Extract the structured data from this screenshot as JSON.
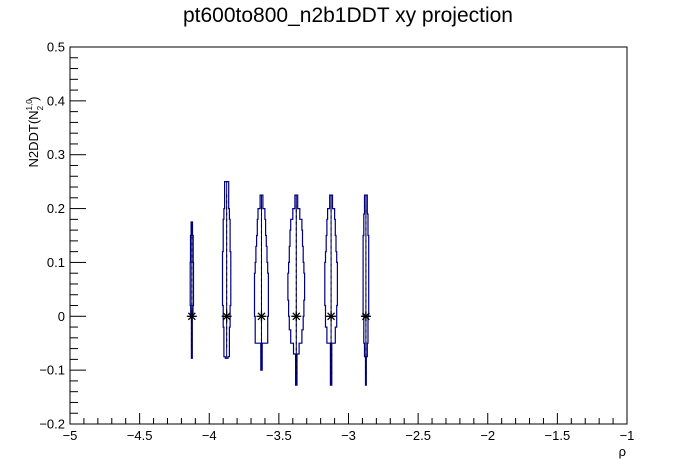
{
  "chart_data": {
    "type": "violin",
    "title": "pt600to800_n2b1DDT xy projection",
    "xlabel": "ρ",
    "ylabel": {
      "base": "N2DDT(N",
      "sup": "1,0",
      "sub": "2",
      "close": ")"
    },
    "xlim": [
      -5,
      -1
    ],
    "ylim": [
      -0.2,
      0.5
    ],
    "xticks": [
      -5,
      -4.5,
      -4,
      -3.5,
      -3,
      -2.5,
      -2,
      -1.5,
      -1
    ],
    "xtick_labels": [
      "−5",
      "−4.5",
      "−4",
      "−3.5",
      "−3",
      "−2.5",
      "−2",
      "−1.5",
      "−1"
    ],
    "yticks": [
      -0.2,
      -0.1,
      0,
      0.1,
      0.2,
      0.3,
      0.4,
      0.5
    ],
    "ytick_labels": [
      "−0.2",
      "−0.1",
      "0",
      "0.1",
      "0.2",
      "0.3",
      "0.4",
      "0.5"
    ],
    "line_color": "#000080",
    "marker_color": "#000000",
    "candles": [
      {
        "x": -4.125,
        "mean": 0.0,
        "whisker": [
          -0.078,
          0.175
        ],
        "median": 0.0,
        "profile": [
          [
            -0.078,
            0.003
          ],
          [
            0.0,
            0.008
          ],
          [
            0.02,
            0.012
          ],
          [
            0.06,
            0.012
          ],
          [
            0.1,
            0.01
          ],
          [
            0.13,
            0.01
          ],
          [
            0.15,
            0.005
          ],
          [
            0.175,
            0.002
          ]
        ]
      },
      {
        "x": -3.875,
        "mean": 0.0,
        "whisker": [
          -0.078,
          0.25
        ],
        "median": 0.0,
        "profile": [
          [
            -0.078,
            0.01
          ],
          [
            -0.075,
            0.02
          ],
          [
            -0.05,
            0.02
          ],
          [
            -0.02,
            0.025
          ],
          [
            0.02,
            0.03
          ],
          [
            0.05,
            0.03
          ],
          [
            0.09,
            0.03
          ],
          [
            0.12,
            0.025
          ],
          [
            0.15,
            0.025
          ],
          [
            0.18,
            0.02
          ],
          [
            0.2,
            0.015
          ],
          [
            0.25,
            0.003
          ]
        ]
      },
      {
        "x": -3.625,
        "mean": 0.0,
        "whisker": [
          -0.1,
          0.225
        ],
        "median": 0.0,
        "profile": [
          [
            -0.1,
            0.005
          ],
          [
            -0.05,
            0.045
          ],
          [
            -0.02,
            0.045
          ],
          [
            0.0,
            0.05
          ],
          [
            0.03,
            0.05
          ],
          [
            0.06,
            0.05
          ],
          [
            0.08,
            0.045
          ],
          [
            0.1,
            0.04
          ],
          [
            0.13,
            0.035
          ],
          [
            0.15,
            0.03
          ],
          [
            0.18,
            0.025
          ],
          [
            0.2,
            0.01
          ],
          [
            0.225,
            0.005
          ]
        ]
      },
      {
        "x": -3.375,
        "mean": 0.0,
        "whisker": [
          -0.128,
          0.225
        ],
        "median": 0.0,
        "profile": [
          [
            -0.128,
            0.005
          ],
          [
            -0.07,
            0.02
          ],
          [
            -0.05,
            0.04
          ],
          [
            -0.025,
            0.05
          ],
          [
            0.0,
            0.055
          ],
          [
            0.03,
            0.06
          ],
          [
            0.06,
            0.06
          ],
          [
            0.08,
            0.055
          ],
          [
            0.1,
            0.05
          ],
          [
            0.13,
            0.045
          ],
          [
            0.16,
            0.04
          ],
          [
            0.18,
            0.025
          ],
          [
            0.2,
            0.01
          ],
          [
            0.225,
            0.005
          ]
        ]
      },
      {
        "x": -3.125,
        "mean": 0.0,
        "whisker": [
          -0.128,
          0.225
        ],
        "median": 0.0,
        "profile": [
          [
            -0.128,
            0.005
          ],
          [
            -0.05,
            0.03
          ],
          [
            -0.02,
            0.04
          ],
          [
            0.02,
            0.045
          ],
          [
            0.05,
            0.045
          ],
          [
            0.08,
            0.045
          ],
          [
            0.1,
            0.04
          ],
          [
            0.12,
            0.035
          ],
          [
            0.15,
            0.03
          ],
          [
            0.18,
            0.025
          ],
          [
            0.2,
            0.01
          ],
          [
            0.225,
            0.005
          ]
        ]
      },
      {
        "x": -2.875,
        "mean": 0.0,
        "whisker": [
          -0.128,
          0.225
        ],
        "median": 0.0,
        "profile": [
          [
            -0.128,
            0.003
          ],
          [
            -0.075,
            0.01
          ],
          [
            -0.05,
            0.015
          ],
          [
            0.0,
            0.02
          ],
          [
            0.05,
            0.02
          ],
          [
            0.1,
            0.02
          ],
          [
            0.15,
            0.015
          ],
          [
            0.19,
            0.01
          ],
          [
            0.225,
            0.003
          ]
        ]
      }
    ]
  }
}
